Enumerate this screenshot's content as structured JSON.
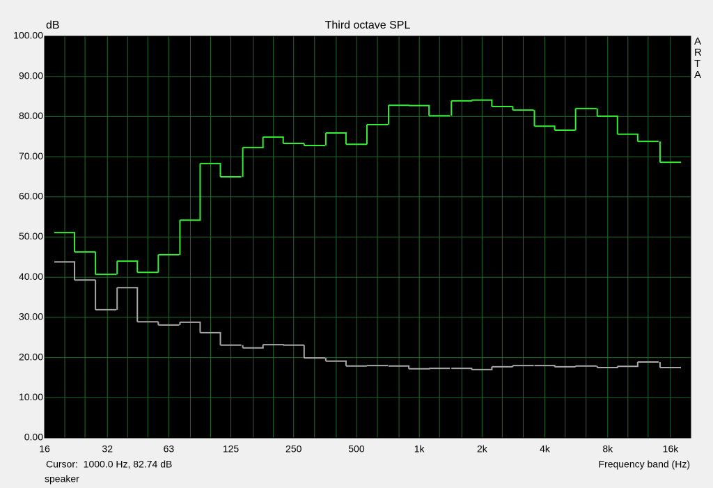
{
  "chart_data": {
    "type": "step",
    "title": "Third octave SPL",
    "y_label": "dB",
    "x_label": "Frequency band (Hz)",
    "cursor_text": "Cursor:  1000.0 Hz, 82.74 dB",
    "trace_name": "speaker",
    "side_label": "ARTA",
    "log_x": true,
    "grid": true,
    "background": "#000000",
    "grid_color": "#1f6b2a",
    "xlim": [
      16,
      20000
    ],
    "ylim": [
      0,
      100
    ],
    "yticks": [
      {
        "value": 0,
        "label": "0.00"
      },
      {
        "value": 10,
        "label": "10.00"
      },
      {
        "value": 20,
        "label": "20.00"
      },
      {
        "value": 30,
        "label": "30.00"
      },
      {
        "value": 40,
        "label": "40.00"
      },
      {
        "value": 50,
        "label": "50.00"
      },
      {
        "value": 60,
        "label": "60.00"
      },
      {
        "value": 70,
        "label": "70.00"
      },
      {
        "value": 80,
        "label": "80.00"
      },
      {
        "value": 90,
        "label": "90.00"
      },
      {
        "value": 100,
        "label": "100.00"
      }
    ],
    "xticks": [
      16,
      32,
      63,
      125,
      250,
      500,
      {
        "value": 1000,
        "label": "1k"
      },
      {
        "value": 2000,
        "label": "2k"
      },
      {
        "value": 4000,
        "label": "4k"
      },
      {
        "value": 8000,
        "label": "8k"
      },
      {
        "value": 16000,
        "label": "16k"
      }
    ],
    "x_minor_grid": [
      20,
      25,
      40,
      50,
      80,
      100,
      160,
      200,
      315,
      400,
      630,
      800,
      1250,
      1600,
      2500,
      3150,
      5000,
      6300,
      10000,
      12500
    ],
    "x": [
      20,
      25,
      31.5,
      40,
      50,
      63,
      80,
      100,
      125,
      160,
      200,
      250,
      315,
      400,
      500,
      630,
      800,
      1000,
      1250,
      1600,
      2000,
      2500,
      3150,
      4000,
      5000,
      6300,
      8000,
      10000,
      12500,
      16000
    ],
    "series": [
      {
        "color": "#33ee33",
        "values": [
          51.1,
          46.3,
          40.7,
          44.0,
          41.2,
          45.6,
          54.2,
          68.3,
          65.0,
          72.3,
          74.9,
          73.3,
          72.8,
          75.9,
          73.1,
          78.0,
          82.8,
          82.74,
          80.2,
          83.9,
          84.1,
          82.5,
          81.6,
          77.6,
          76.6,
          82.0,
          80.1,
          75.6,
          73.8,
          68.6
        ]
      },
      {
        "color": "#a8a8a8",
        "values": [
          43.8,
          39.3,
          31.9,
          37.4,
          28.9,
          28.1,
          28.8,
          26.2,
          23.1,
          22.4,
          23.2,
          23.1,
          19.9,
          19.1,
          17.9,
          18.0,
          17.9,
          17.2,
          17.3,
          17.3,
          17.0,
          17.7,
          18.0,
          18.0,
          17.7,
          17.9,
          17.5,
          17.8,
          18.9,
          17.5
        ]
      }
    ]
  }
}
